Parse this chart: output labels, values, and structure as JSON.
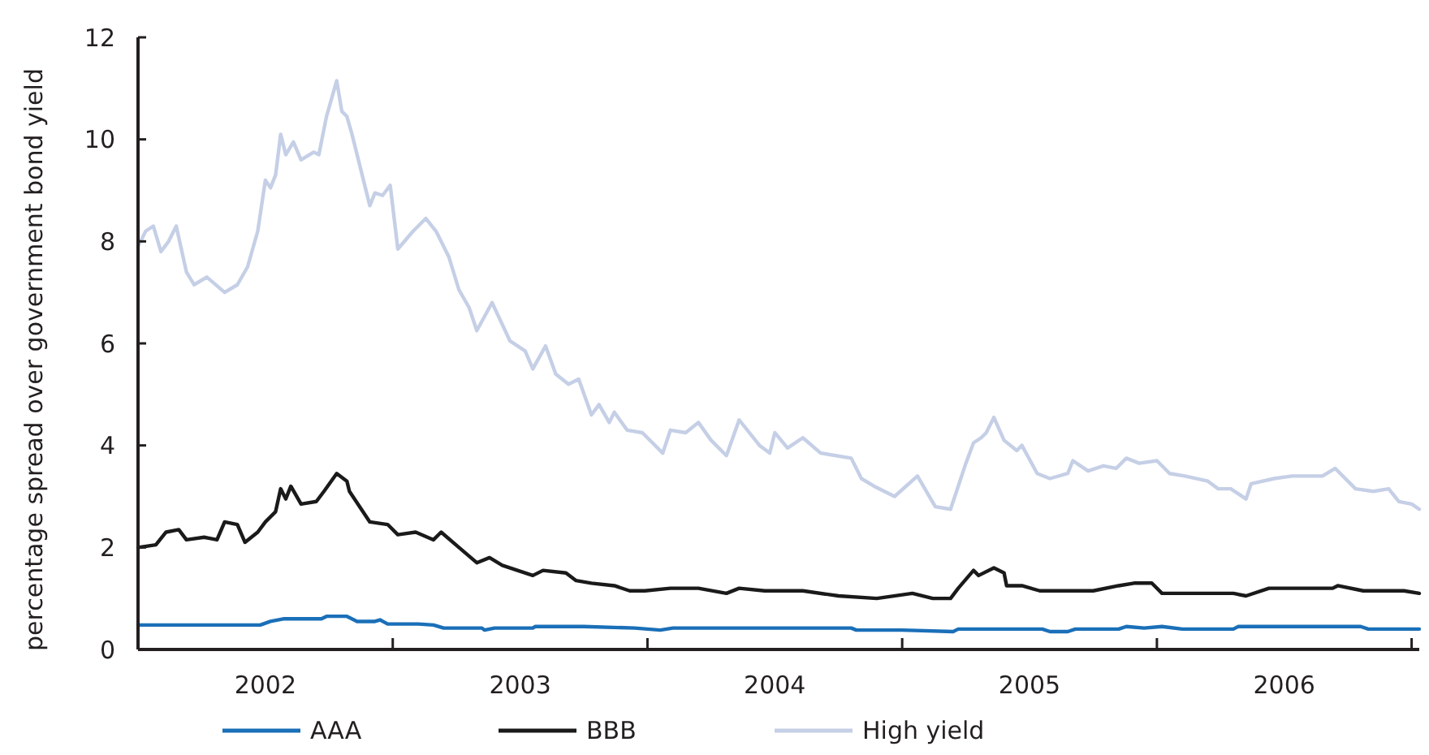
{
  "chart_data": {
    "type": "line",
    "ylabel": "percentage spread over government bond yield",
    "xlim": [
      2002,
      2007.03
    ],
    "xticks": [
      {
        "value": 2002,
        "label": null
      },
      {
        "value": 2002.5,
        "label": "2002"
      },
      {
        "value": 2003,
        "label": null
      },
      {
        "value": 2003.5,
        "label": "2003"
      },
      {
        "value": 2004,
        "label": null
      },
      {
        "value": 2004.5,
        "label": "2004"
      },
      {
        "value": 2005,
        "label": null
      },
      {
        "value": 2005.5,
        "label": "2005"
      },
      {
        "value": 2006,
        "label": null
      },
      {
        "value": 2006.5,
        "label": "2006"
      },
      {
        "value": 2007,
        "label": null
      }
    ],
    "ylim": [
      0,
      12
    ],
    "yticks": [
      0,
      2,
      4,
      6,
      8,
      10,
      12
    ],
    "grid": false,
    "legend": "bottom",
    "marker": "none",
    "line_style": "solid",
    "series": [
      {
        "name": "AAA",
        "color": "#1a6fb8",
        "x": [
          2002.0,
          2002.48,
          2002.52,
          2002.57,
          2002.72,
          2002.74,
          2002.82,
          2002.86,
          2002.93,
          2002.95,
          2002.98,
          2003.1,
          2003.16,
          2003.2,
          2003.35,
          2003.36,
          2003.4,
          2003.55,
          2003.56,
          2003.75,
          2003.95,
          2004.05,
          2004.1,
          2004.4,
          2004.8,
          2004.82,
          2005.0,
          2005.2,
          2005.22,
          2005.55,
          2005.58,
          2005.65,
          2005.68,
          2005.85,
          2005.88,
          2005.95,
          2006.02,
          2006.1,
          2006.3,
          2006.32,
          2006.8,
          2006.83,
          2007.03
        ],
        "values": [
          0.48,
          0.48,
          0.55,
          0.6,
          0.6,
          0.65,
          0.65,
          0.55,
          0.55,
          0.58,
          0.5,
          0.5,
          0.48,
          0.42,
          0.42,
          0.38,
          0.42,
          0.42,
          0.45,
          0.45,
          0.42,
          0.38,
          0.42,
          0.42,
          0.42,
          0.38,
          0.38,
          0.35,
          0.4,
          0.4,
          0.35,
          0.35,
          0.4,
          0.4,
          0.45,
          0.42,
          0.45,
          0.4,
          0.4,
          0.45,
          0.45,
          0.4,
          0.4
        ]
      },
      {
        "name": "BBB",
        "color": "#1a1a1a",
        "x": [
          2002.0,
          2002.07,
          2002.11,
          2002.16,
          2002.19,
          2002.26,
          2002.31,
          2002.34,
          2002.39,
          2002.42,
          2002.47,
          2002.5,
          2002.54,
          2002.56,
          2002.58,
          2002.6,
          2002.64,
          2002.7,
          2002.73,
          2002.78,
          2002.82,
          2002.83,
          2002.91,
          2002.98,
          2003.02,
          2003.09,
          2003.16,
          2003.19,
          2003.26,
          2003.33,
          2003.38,
          2003.43,
          2003.55,
          2003.59,
          2003.68,
          2003.72,
          2003.78,
          2003.87,
          2003.93,
          2003.99,
          2004.09,
          2004.2,
          2004.31,
          2004.36,
          2004.46,
          2004.61,
          2004.75,
          2004.9,
          2005.04,
          2005.12,
          2005.19,
          2005.22,
          2005.28,
          2005.3,
          2005.36,
          2005.4,
          2005.41,
          2005.47,
          2005.54,
          2005.75,
          2005.85,
          2005.91,
          2005.98,
          2006.02,
          2006.3,
          2006.35,
          2006.44,
          2006.69,
          2006.71,
          2006.81,
          2006.97,
          2007.03
        ],
        "values": [
          2.0,
          2.05,
          2.3,
          2.35,
          2.15,
          2.2,
          2.15,
          2.5,
          2.45,
          2.1,
          2.3,
          2.5,
          2.7,
          3.15,
          2.95,
          3.2,
          2.85,
          2.9,
          3.1,
          3.45,
          3.3,
          3.1,
          2.5,
          2.45,
          2.25,
          2.3,
          2.15,
          2.3,
          2.0,
          1.7,
          1.8,
          1.65,
          1.45,
          1.55,
          1.5,
          1.35,
          1.3,
          1.25,
          1.15,
          1.15,
          1.2,
          1.2,
          1.1,
          1.2,
          1.15,
          1.15,
          1.05,
          1.0,
          1.1,
          1.0,
          1.0,
          1.2,
          1.55,
          1.45,
          1.6,
          1.5,
          1.25,
          1.25,
          1.15,
          1.15,
          1.25,
          1.3,
          1.3,
          1.1,
          1.1,
          1.05,
          1.2,
          1.2,
          1.25,
          1.15,
          1.15,
          1.1
        ]
      },
      {
        "name": "High yield",
        "color": "#c5cfe6",
        "x": [
          2002.0,
          2002.03,
          2002.06,
          2002.09,
          2002.12,
          2002.15,
          2002.19,
          2002.22,
          2002.27,
          2002.34,
          2002.39,
          2002.43,
          2002.47,
          2002.5,
          2002.52,
          2002.54,
          2002.56,
          2002.58,
          2002.61,
          2002.64,
          2002.69,
          2002.71,
          2002.74,
          2002.78,
          2002.8,
          2002.82,
          2002.84,
          2002.88,
          2002.91,
          2002.93,
          2002.96,
          2002.99,
          2003.02,
          2003.08,
          2003.13,
          2003.17,
          2003.22,
          2003.26,
          2003.3,
          2003.33,
          2003.39,
          2003.46,
          2003.52,
          2003.55,
          2003.6,
          2003.64,
          2003.69,
          2003.73,
          2003.78,
          2003.81,
          2003.85,
          2003.87,
          2003.92,
          2003.98,
          2004.06,
          2004.09,
          2004.15,
          2004.2,
          2004.25,
          2004.31,
          2004.36,
          2004.44,
          2004.48,
          2004.5,
          2004.55,
          2004.61,
          2004.68,
          2004.8,
          2004.84,
          2004.89,
          2004.97,
          2005.06,
          2005.13,
          2005.19,
          2005.22,
          2005.25,
          2005.28,
          2005.31,
          2005.33,
          2005.36,
          2005.4,
          2005.45,
          2005.47,
          2005.53,
          2005.58,
          2005.65,
          2005.67,
          2005.7,
          2005.73,
          2005.79,
          2005.84,
          2005.88,
          2005.93,
          2006.0,
          2006.05,
          2006.11,
          2006.2,
          2006.24,
          2006.29,
          2006.35,
          2006.37,
          2006.46,
          2006.53,
          2006.61,
          2006.65,
          2006.7,
          2006.78,
          2006.85,
          2006.91,
          2006.95,
          2007.0,
          2007.03
        ],
        "values": [
          7.9,
          8.2,
          8.3,
          7.8,
          8.0,
          8.3,
          7.4,
          7.15,
          7.3,
          7.0,
          7.15,
          7.5,
          8.2,
          9.2,
          9.05,
          9.3,
          10.1,
          9.7,
          9.95,
          9.6,
          9.75,
          9.7,
          10.45,
          11.15,
          10.55,
          10.45,
          10.1,
          9.3,
          8.7,
          8.95,
          8.9,
          9.1,
          7.85,
          8.2,
          8.45,
          8.2,
          7.7,
          7.05,
          6.7,
          6.25,
          6.8,
          6.05,
          5.85,
          5.5,
          5.95,
          5.4,
          5.2,
          5.3,
          4.6,
          4.8,
          4.45,
          4.65,
          4.3,
          4.25,
          3.85,
          4.3,
          4.25,
          4.45,
          4.1,
          3.8,
          4.5,
          4.0,
          3.85,
          4.25,
          3.95,
          4.15,
          3.85,
          3.75,
          3.35,
          3.2,
          3.0,
          3.4,
          2.8,
          2.75,
          3.2,
          3.65,
          4.05,
          4.15,
          4.25,
          4.55,
          4.1,
          3.9,
          4.0,
          3.45,
          3.35,
          3.45,
          3.7,
          3.6,
          3.5,
          3.6,
          3.55,
          3.75,
          3.65,
          3.7,
          3.45,
          3.4,
          3.3,
          3.15,
          3.15,
          2.95,
          3.25,
          3.35,
          3.4,
          3.4,
          3.4,
          3.55,
          3.15,
          3.1,
          3.15,
          2.9,
          2.85,
          2.75
        ]
      }
    ]
  }
}
